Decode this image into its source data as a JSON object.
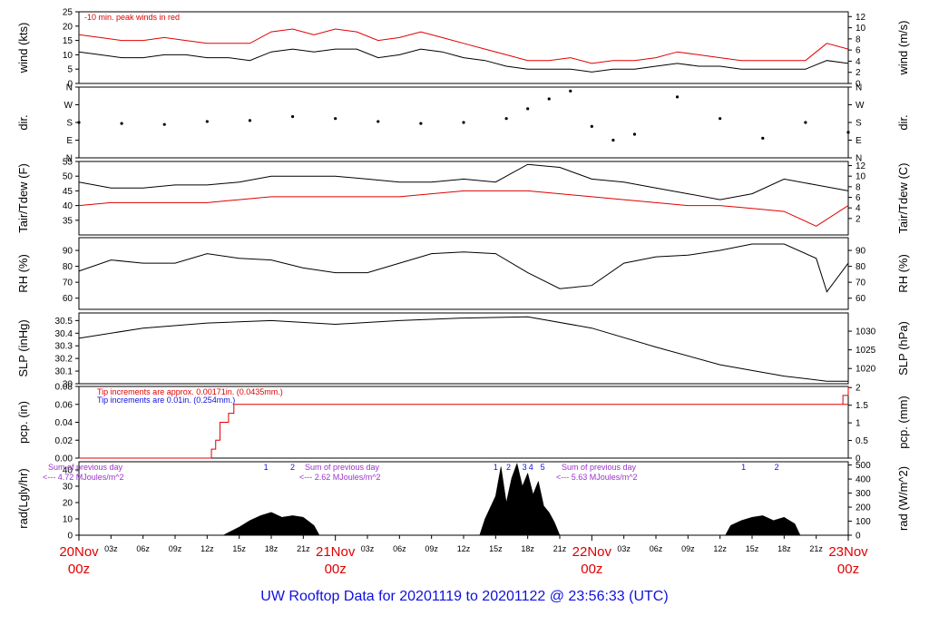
{
  "chart_data": [
    {
      "type": "line",
      "panel": "wind",
      "left_label": "wind (kts)",
      "right_label": "wind (m/s)",
      "left_ticks": [
        0,
        5,
        10,
        15,
        20,
        25
      ],
      "right_ticks": [
        0,
        2,
        4,
        6,
        8,
        10,
        12
      ],
      "ylim": [
        0,
        25
      ],
      "annotation": "-10 min. peak winds in red",
      "series": [
        {
          "color": "#000000",
          "x": [
            0,
            2,
            4,
            6,
            8,
            10,
            12,
            14,
            16,
            18,
            20,
            22,
            24,
            26,
            28,
            30,
            32,
            34,
            36,
            38,
            40,
            42,
            44,
            46,
            48,
            50,
            52,
            54,
            56,
            58,
            60,
            62,
            64,
            66,
            68,
            70,
            72
          ],
          "values": [
            11,
            10,
            9,
            9,
            10,
            10,
            9,
            9,
            8,
            11,
            12,
            11,
            12,
            12,
            9,
            10,
            12,
            11,
            9,
            8,
            6,
            5,
            5,
            5,
            4,
            5,
            5,
            6,
            7,
            6,
            6,
            5,
            5,
            5,
            5,
            8,
            7
          ]
        },
        {
          "color": "#e00000",
          "x": [
            0,
            2,
            4,
            6,
            8,
            10,
            12,
            14,
            16,
            18,
            20,
            22,
            24,
            26,
            28,
            30,
            32,
            34,
            36,
            38,
            40,
            42,
            44,
            46,
            48,
            50,
            52,
            54,
            56,
            58,
            60,
            62,
            64,
            66,
            68,
            70,
            72
          ],
          "values": [
            17,
            16,
            15,
            15,
            16,
            15,
            14,
            14,
            14,
            18,
            19,
            17,
            19,
            18,
            15,
            16,
            18,
            16,
            14,
            12,
            10,
            8,
            8,
            9,
            7,
            8,
            8,
            9,
            11,
            10,
            9,
            8,
            8,
            8,
            8,
            14,
            12
          ]
        }
      ]
    },
    {
      "type": "scatter",
      "panel": "dir",
      "left_label": "dir.",
      "right_label": "dir.",
      "left_ticks": [
        "N",
        "E",
        "S",
        "W",
        "N"
      ],
      "right_ticks": [
        "N",
        "E",
        "S",
        "W",
        "N"
      ],
      "series": [
        {
          "color": "#000000",
          "x": [
            0,
            4,
            8,
            12,
            16,
            20,
            24,
            28,
            32,
            36,
            40,
            42,
            44,
            46,
            48,
            50,
            52,
            56,
            60,
            64,
            68,
            72
          ],
          "values": [
            180,
            175,
            170,
            185,
            190,
            210,
            200,
            185,
            175,
            180,
            200,
            250,
            300,
            340,
            160,
            90,
            120,
            310,
            200,
            100,
            180,
            130
          ]
        }
      ]
    },
    {
      "type": "line",
      "panel": "temp",
      "left_label": "Tair/Tdew (F)",
      "right_label": "Tair/Tdew (C)",
      "left_ticks": [
        35,
        40,
        45,
        50,
        55
      ],
      "right_ticks": [
        2,
        4,
        6,
        8,
        10,
        12
      ],
      "ylim": [
        30,
        55
      ],
      "series": [
        {
          "color": "#000000",
          "x": [
            0,
            3,
            6,
            9,
            12,
            15,
            18,
            21,
            24,
            27,
            30,
            33,
            36,
            39,
            42,
            45,
            48,
            51,
            54,
            57,
            60,
            63,
            66,
            69,
            72
          ],
          "values": [
            48,
            46,
            46,
            47,
            47,
            48,
            50,
            50,
            50,
            49,
            48,
            48,
            49,
            48,
            54,
            53,
            49,
            48,
            46,
            44,
            42,
            44,
            49,
            47,
            45
          ]
        },
        {
          "color": "#e00000",
          "x": [
            0,
            3,
            6,
            9,
            12,
            15,
            18,
            21,
            24,
            27,
            30,
            33,
            36,
            39,
            42,
            45,
            48,
            51,
            54,
            57,
            60,
            63,
            66,
            69,
            72
          ],
          "values": [
            40,
            41,
            41,
            41,
            41,
            42,
            43,
            43,
            43,
            43,
            43,
            44,
            45,
            45,
            45,
            44,
            43,
            42,
            41,
            40,
            40,
            39,
            38,
            33,
            40
          ]
        }
      ]
    },
    {
      "type": "line",
      "panel": "rh",
      "left_label": "RH (%)",
      "right_label": "RH (%)",
      "left_ticks": [
        60,
        70,
        80,
        90
      ],
      "right_ticks": [
        60,
        70,
        80,
        90
      ],
      "ylim": [
        53,
        98
      ],
      "series": [
        {
          "color": "#000000",
          "x": [
            0,
            3,
            6,
            9,
            12,
            15,
            18,
            21,
            24,
            27,
            30,
            33,
            36,
            39,
            42,
            45,
            48,
            51,
            54,
            57,
            60,
            63,
            66,
            69,
            70,
            72
          ],
          "values": [
            77,
            84,
            82,
            82,
            88,
            85,
            84,
            79,
            76,
            76,
            82,
            88,
            89,
            88,
            76,
            66,
            68,
            82,
            86,
            87,
            90,
            94,
            94,
            85,
            64,
            82
          ]
        }
      ]
    },
    {
      "type": "line",
      "panel": "slp",
      "left_label": "SLP (inHg)",
      "right_label": "SLP (hPa)",
      "left_ticks": [
        30.0,
        30.1,
        30.2,
        30.3,
        30.4,
        30.5
      ],
      "right_ticks": [
        1020,
        1025,
        1030
      ],
      "ylim": [
        30.0,
        30.56
      ],
      "series": [
        {
          "color": "#000000",
          "x": [
            0,
            6,
            12,
            18,
            24,
            30,
            36,
            42,
            48,
            54,
            60,
            66,
            70,
            72
          ],
          "values": [
            30.36,
            30.44,
            30.48,
            30.5,
            30.47,
            30.5,
            30.52,
            30.53,
            30.44,
            30.29,
            30.15,
            30.06,
            30.02,
            30.02
          ]
        }
      ]
    },
    {
      "type": "line",
      "panel": "pcp",
      "left_label": "pcp. (in)",
      "right_label": "pcp. (mm)",
      "left_ticks": [
        "0.00",
        "0.02",
        "0.04",
        "0.06",
        "0.08"
      ],
      "right_ticks": [
        "0",
        "0.5",
        "1",
        "1.5",
        "2"
      ],
      "ylim": [
        0,
        0.08
      ],
      "annotation_red": "Tip increments are approx. 0.00171in. (0.0435mm.)",
      "annotation_blue": "Tip increments are 0.01in. (0.254mm.)",
      "series": [
        {
          "color": "#e00000",
          "x": [
            0,
            12,
            12.4,
            12.8,
            13.2,
            14,
            14.5,
            72,
            71,
            71.5,
            72
          ],
          "values": [
            0,
            0,
            0.01,
            0.02,
            0.04,
            0.05,
            0.06,
            0.06,
            0.06,
            0.07,
            0.08
          ]
        }
      ]
    },
    {
      "type": "area",
      "panel": "rad",
      "left_label": "rad(Lgly/hr)",
      "right_label": "rad (W/m^2)",
      "left_ticks": [
        0,
        10,
        20,
        30,
        40
      ],
      "right_ticks": [
        0,
        100,
        200,
        300,
        400,
        500
      ],
      "ylim": [
        0,
        45
      ],
      "notes": [
        {
          "line1": "Sum of previous day",
          "line2": "<--- 4.72 MJoules/m^2"
        },
        {
          "line1": "Sum of previous day",
          "line2": "<--- 2.62 MJoules/m^2"
        },
        {
          "line1": "Sum of previous day",
          "line2": "<--- 5.63 MJoules/m^2"
        }
      ],
      "markers": [
        {
          "x": 17.5,
          "label": "1"
        },
        {
          "x": 20,
          "label": "2"
        },
        {
          "x": 39,
          "label": "1"
        },
        {
          "x": 40.2,
          "label": "2"
        },
        {
          "x": 41.7,
          "label": "3"
        },
        {
          "x": 42.3,
          "label": "4"
        },
        {
          "x": 43.4,
          "label": "5"
        },
        {
          "x": 62.2,
          "label": "1"
        },
        {
          "x": 65.3,
          "label": "2"
        }
      ],
      "series": [
        {
          "color": "#000000",
          "x": [
            0,
            1,
            13.5,
            15,
            16,
            17,
            18,
            19,
            20,
            21,
            22,
            22.5,
            37.5,
            38,
            39,
            39.5,
            40,
            40.5,
            41,
            41.5,
            42,
            42.5,
            43,
            43.5,
            44,
            44.5,
            45,
            60.5,
            61,
            62,
            63,
            64,
            65,
            66,
            67,
            67.5,
            72
          ],
          "values": [
            0,
            0,
            0,
            5,
            9,
            12,
            14,
            11,
            12,
            11,
            6,
            0,
            0,
            10,
            24,
            42,
            20,
            35,
            44,
            30,
            38,
            25,
            33,
            18,
            14,
            8,
            0,
            0,
            6,
            9,
            11,
            12,
            9,
            11,
            7,
            0,
            0
          ]
        }
      ]
    }
  ],
  "time_axis": {
    "ticks": [
      "03z",
      "06z",
      "09z",
      "12z",
      "15z",
      "18z",
      "21z"
    ],
    "days": [
      {
        "date": "20Nov",
        "hour": "00z"
      },
      {
        "date": "21Nov",
        "hour": "00z"
      },
      {
        "date": "22Nov",
        "hour": "00z"
      },
      {
        "date": "23Nov",
        "hour": "00z"
      }
    ]
  },
  "title": "UW Rooftop Data for 20201119  to  20201122 @ 23:56:33  (UTC)"
}
